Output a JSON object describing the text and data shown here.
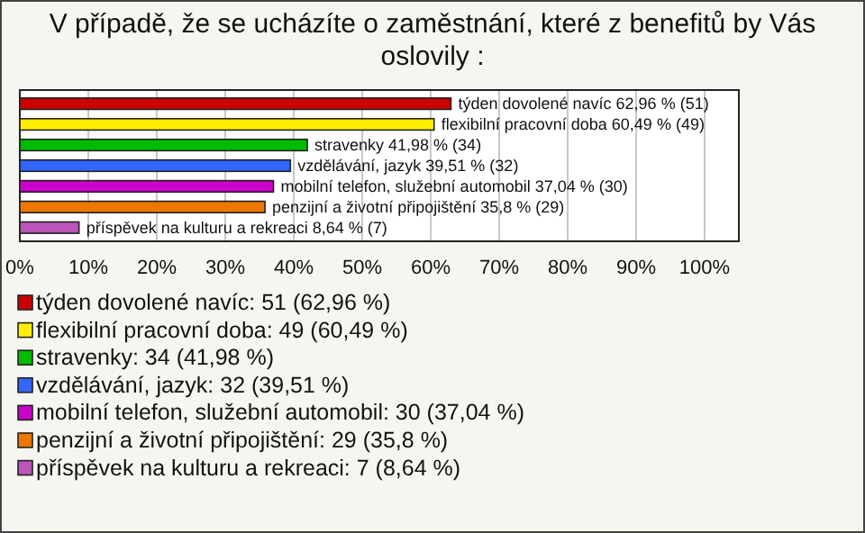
{
  "chart_data": {
    "type": "bar",
    "orientation": "horizontal",
    "stacked": true,
    "title": "V případě, že se ucházíte o zaměstnání, které z benefitů by Vás oslovily :",
    "categories": [
      null,
      null,
      null,
      null,
      null,
      null,
      null
    ],
    "series": [
      {
        "name": "týden dovolené navíc: 51 (62,96 %)",
        "color": "#cc0000",
        "values": [
          62.96,
          null,
          null,
          null,
          null,
          null,
          null
        ],
        "value_labels": [
          "týden dovolené navíc 62,96 % (51)",
          null,
          null,
          null,
          null,
          null,
          null
        ]
      },
      {
        "name": "flexibilní pracovní doba: 49 (60,49 %)",
        "color": "#ffee00",
        "values": [
          null,
          60.49,
          null,
          null,
          null,
          null,
          null
        ],
        "value_labels": [
          null,
          "flexibilní pracovní doba 60,49 % (49)",
          null,
          null,
          null,
          null,
          null
        ]
      },
      {
        "name": "stravenky: 34 (41,98 %)",
        "color": "#00bb00",
        "values": [
          null,
          null,
          41.98,
          null,
          null,
          null,
          null
        ],
        "value_labels": [
          null,
          null,
          "stravenky 41,98 % (34)",
          null,
          null,
          null,
          null
        ]
      },
      {
        "name": "vzdělávání, jazyk: 32 (39,51 %)",
        "color": "#3366ff",
        "values": [
          null,
          null,
          null,
          39.51,
          null,
          null,
          null
        ],
        "value_labels": [
          null,
          null,
          null,
          "vzdělávání, jazyk 39,51 % (32)",
          null,
          null,
          null
        ]
      },
      {
        "name": "mobilní telefon, služební automobil: 30 (37,04 %)",
        "color": "#cc00cc",
        "values": [
          null,
          null,
          null,
          null,
          37.04,
          null,
          null
        ],
        "value_labels": [
          null,
          null,
          null,
          null,
          "mobilní telefon, služební automobil 37,04 % (30)",
          null,
          null
        ]
      },
      {
        "name": "penzijní a životní připojištění: 29 (35,8 %)",
        "color": "#ee7700",
        "values": [
          null,
          null,
          null,
          null,
          null,
          35.8,
          null
        ],
        "value_labels": [
          null,
          null,
          null,
          null,
          null,
          "penzijní a životní připojištění 35,8 % (29)",
          null
        ]
      },
      {
        "name": "příspěvek na kulturu a rekreaci: 7 (8,64 %)",
        "color": "#bb55bb",
        "values": [
          null,
          null,
          null,
          null,
          null,
          null,
          8.64
        ],
        "value_labels": [
          null,
          null,
          null,
          null,
          null,
          null,
          "příspěvek na kulturu a rekreaci 8,64 % (7)"
        ]
      }
    ],
    "xlim": [
      0,
      105
    ],
    "xticks": [
      {
        "value": 0,
        "label": "0%"
      },
      {
        "value": 10,
        "label": "10%"
      },
      {
        "value": 20,
        "label": "20%"
      },
      {
        "value": 30,
        "label": "30%"
      },
      {
        "value": 40,
        "label": "40%"
      },
      {
        "value": 50,
        "label": "50%"
      },
      {
        "value": 60,
        "label": "60%"
      },
      {
        "value": 70,
        "label": "70%"
      },
      {
        "value": 80,
        "label": "80%"
      },
      {
        "value": 90,
        "label": "90%"
      },
      {
        "value": 100,
        "label": "100%"
      }
    ],
    "grid": "x",
    "legend": "bottom"
  }
}
